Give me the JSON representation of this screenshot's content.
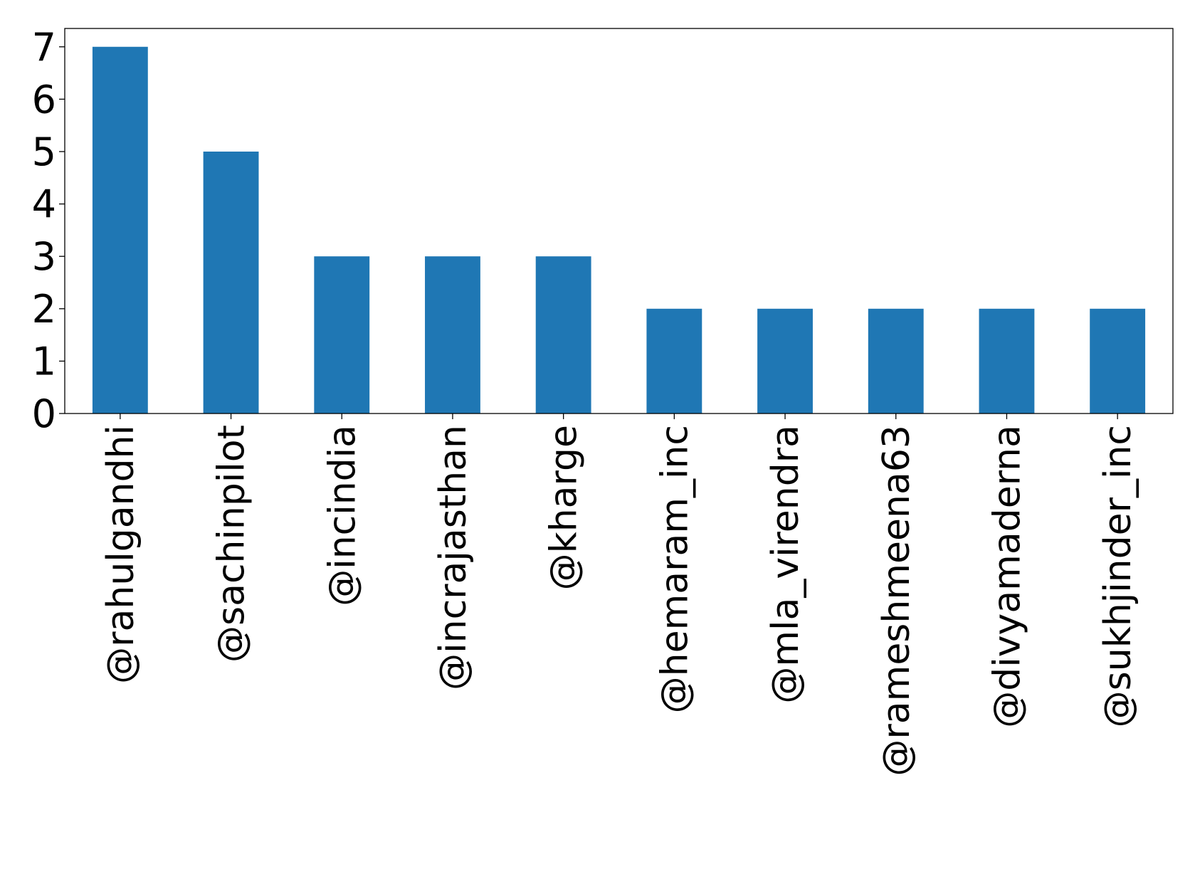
{
  "chart_data": {
    "type": "bar",
    "title": "",
    "xlabel": "",
    "ylabel": "",
    "categories": [
      "@rahulgandhi",
      "@sachinpilot",
      "@incindia",
      "@incrajasthan",
      "@kharge",
      "@hemaram_inc",
      "@mla_virendra",
      "@rameshmeena63",
      "@divyamaderna",
      "@sukhjinder_inc"
    ],
    "values": [
      7,
      5,
      3,
      3,
      3,
      2,
      2,
      2,
      2,
      2
    ],
    "ylim": [
      0,
      7.35
    ],
    "yticks": [
      0,
      1,
      2,
      3,
      4,
      5,
      6,
      7
    ],
    "grid": false,
    "legend": "none",
    "bar_color": "#1f77b4"
  }
}
